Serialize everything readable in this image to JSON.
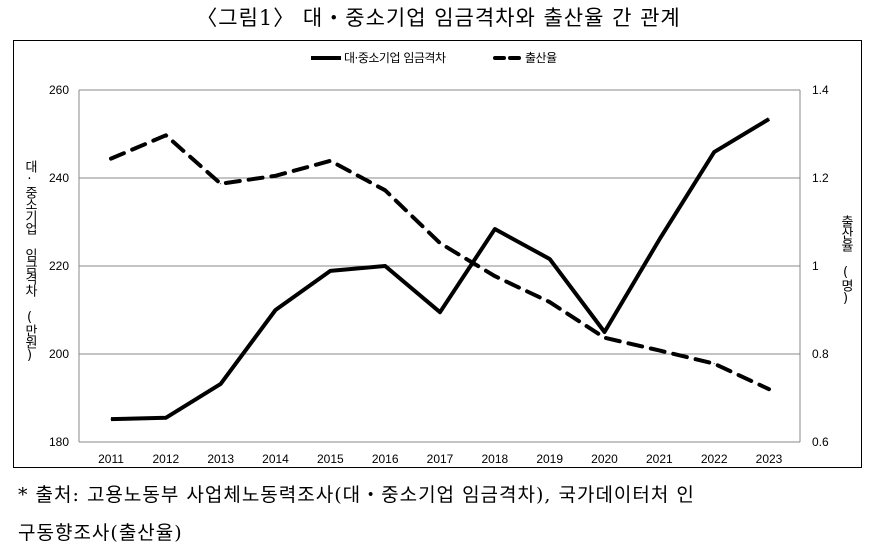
{
  "title": "〈그림1〉 대・중소기업 임금격차와 출산율 간 관계",
  "chart_data": {
    "type": "line",
    "title": "",
    "x": [
      2011,
      2012,
      2013,
      2014,
      2015,
      2016,
      2017,
      2018,
      2019,
      2020,
      2021,
      2022,
      2023
    ],
    "x_tick_labels": [
      "2011",
      "2012",
      "2013",
      "2014",
      "2015",
      "2016",
      "2017",
      "2018",
      "2019",
      "2020",
      "2021",
      "2022",
      "2023"
    ],
    "ylabel_left": "대·중소기업 임금격차 (만원)",
    "ylabel_right": "출산율 (명)",
    "ylim_left": [
      180,
      260
    ],
    "ylim_right": [
      0.6,
      1.4
    ],
    "yticks_left": [
      "180",
      "200",
      "220",
      "240",
      "260"
    ],
    "yticks_right": [
      "0.6",
      "0.8",
      "1",
      "1.2",
      "1.4"
    ],
    "grid": "horizontal",
    "legend_position": "top",
    "series": [
      {
        "name": "대·중소기업 임금격차",
        "axis": "left",
        "style": "solid",
        "color": "#000000",
        "values": [
          185.2,
          185.5,
          193.2,
          210,
          218.9,
          220,
          209.5,
          228.4,
          221.6,
          205,
          226,
          245.9,
          253.4
        ]
      },
      {
        "name": "출산율",
        "axis": "right",
        "style": "dashed",
        "color": "#000000",
        "values": [
          1.244,
          1.297,
          1.187,
          1.205,
          1.239,
          1.172,
          1.052,
          0.977,
          0.918,
          0.837,
          0.808,
          0.778,
          0.72
        ]
      }
    ]
  },
  "footer": {
    "line1": "* 출처: 고용노동부 사업체노동력조사(대・중소기업 임금격차), 국가데이터처 인",
    "line2": "구동향조사(출산율)"
  }
}
